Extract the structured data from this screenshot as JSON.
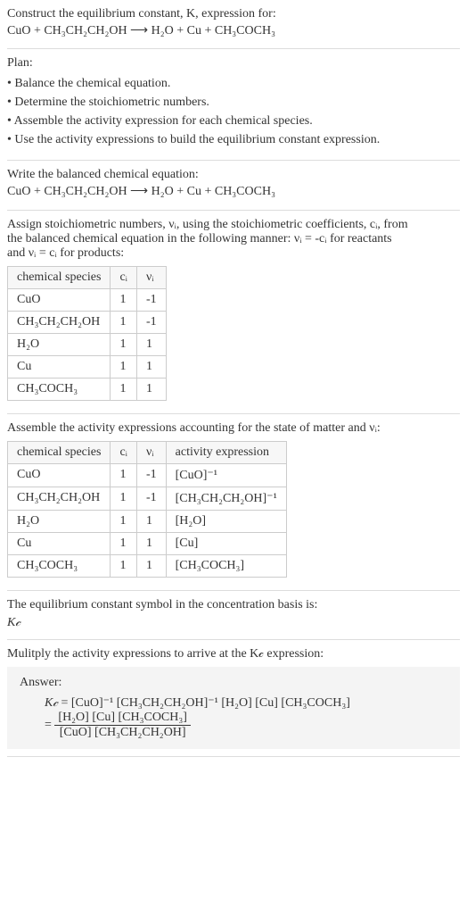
{
  "intro": {
    "line1": "Construct the equilibrium constant, K, expression for:",
    "equation": "CuO + CH₃CH₂CH₂OH ⟶ H₂O + Cu + CH₃COCH₃"
  },
  "plan": {
    "title": "Plan:",
    "items": [
      "• Balance the chemical equation.",
      "• Determine the stoichiometric numbers.",
      "• Assemble the activity expression for each chemical species.",
      "• Use the activity expressions to build the equilibrium constant expression."
    ]
  },
  "balanced": {
    "title": "Write the balanced chemical equation:",
    "equation": "CuO + CH₃CH₂CH₂OH ⟶ H₂O + Cu + CH₃COCH₃"
  },
  "stoich": {
    "intro1": "Assign stoichiometric numbers, νᵢ, using the stoichiometric coefficients, cᵢ, from",
    "intro2": "the balanced chemical equation in the following manner: νᵢ = -cᵢ for reactants",
    "intro3": "and νᵢ = cᵢ for products:",
    "headers": [
      "chemical species",
      "cᵢ",
      "νᵢ"
    ],
    "rows": [
      [
        "CuO",
        "1",
        "-1"
      ],
      [
        "CH₃CH₂CH₂OH",
        "1",
        "-1"
      ],
      [
        "H₂O",
        "1",
        "1"
      ],
      [
        "Cu",
        "1",
        "1"
      ],
      [
        "CH₃COCH₃",
        "1",
        "1"
      ]
    ]
  },
  "activity": {
    "intro": "Assemble the activity expressions accounting for the state of matter and νᵢ:",
    "headers": [
      "chemical species",
      "cᵢ",
      "νᵢ",
      "activity expression"
    ],
    "rows": [
      [
        "CuO",
        "1",
        "-1",
        "[CuO]⁻¹"
      ],
      [
        "CH₃CH₂CH₂OH",
        "1",
        "-1",
        "[CH₃CH₂CH₂OH]⁻¹"
      ],
      [
        "H₂O",
        "1",
        "1",
        "[H₂O]"
      ],
      [
        "Cu",
        "1",
        "1",
        "[Cu]"
      ],
      [
        "CH₃COCH₃",
        "1",
        "1",
        "[CH₃COCH₃]"
      ]
    ]
  },
  "symbol": {
    "line1": "The equilibrium constant symbol in the concentration basis is:",
    "kc": "K𝒸"
  },
  "multiply": {
    "line": "Mulitply the activity expressions to arrive at the K𝒸 expression:"
  },
  "answer": {
    "label": "Answer:",
    "kc": "K𝒸",
    "eq1": "= [CuO]⁻¹ [CH₃CH₂CH₂OH]⁻¹ [H₂O] [Cu] [CH₃COCH₃]",
    "eq2_prefix": "= ",
    "num": "[H₂O] [Cu] [CH₃COCH₃]",
    "den": "[CuO] [CH₃CH₂CH₂OH]"
  }
}
